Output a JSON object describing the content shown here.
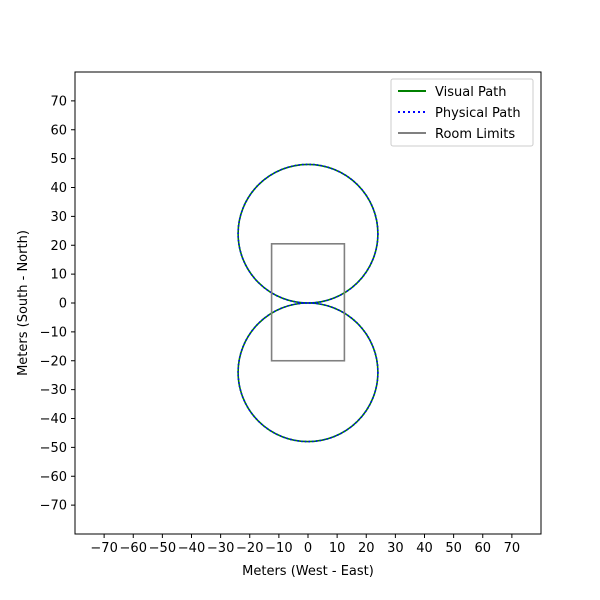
{
  "chart_data": {
    "type": "line",
    "xlabel": "Meters (West - East)",
    "ylabel": "Meters (South - North)",
    "xlim": [
      -80,
      80
    ],
    "ylim": [
      -80,
      80
    ],
    "xticks": [
      -70,
      -60,
      -50,
      -40,
      -30,
      -20,
      -10,
      0,
      10,
      20,
      30,
      40,
      50,
      60,
      70
    ],
    "yticks": [
      -70,
      -60,
      -50,
      -40,
      -30,
      -20,
      -10,
      0,
      10,
      20,
      30,
      40,
      50,
      60,
      70
    ],
    "grid": false,
    "legend_position": "top-right",
    "series": [
      {
        "name": "Visual Path",
        "color": "#008000",
        "style": "solid",
        "circles": [
          {
            "center_x": 0,
            "center_y": 24,
            "radius": 24
          },
          {
            "center_x": 0,
            "center_y": -24,
            "radius": 24
          }
        ]
      },
      {
        "name": "Physical Path",
        "color": "#0000ff",
        "style": "dotted",
        "circles": [
          {
            "center_x": 0,
            "center_y": 24,
            "radius": 24
          },
          {
            "center_x": 0,
            "center_y": -24,
            "radius": 24
          }
        ]
      },
      {
        "name": "Room Limits",
        "color": "#808080",
        "style": "solid",
        "rectangle": {
          "x_min": -12.5,
          "x_max": 12.5,
          "y_min": -20,
          "y_max": 20.5
        }
      }
    ]
  }
}
